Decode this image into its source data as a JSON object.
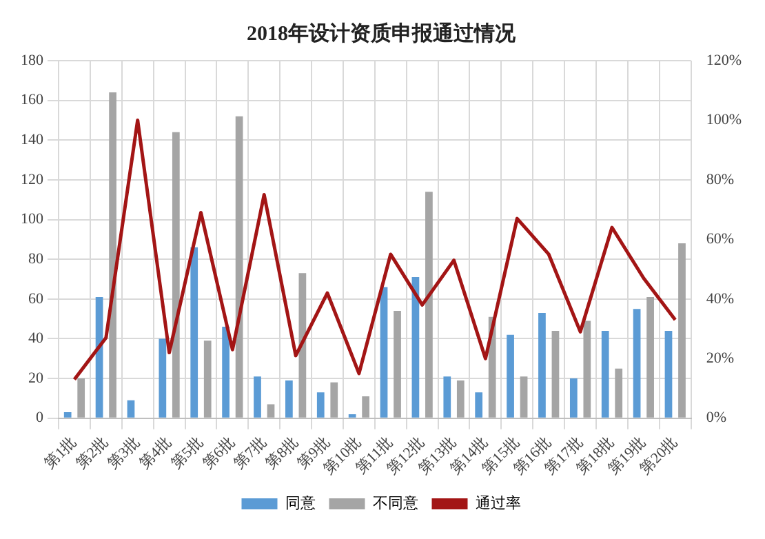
{
  "chart_data": {
    "type": "bar",
    "title": "2018年设计资质申报通过情况",
    "categories": [
      "第1批",
      "第2批",
      "第3批",
      "第4批",
      "第5批",
      "第6批",
      "第7批",
      "第8批",
      "第9批",
      "第10批",
      "第11批",
      "第12批",
      "第13批",
      "第14批",
      "第15批",
      "第16批",
      "第17批",
      "第18批",
      "第19批",
      "第20批"
    ],
    "series": [
      {
        "name": "同意",
        "color": "#5b9bd5",
        "values": [
          3,
          61,
          9,
          40,
          86,
          46,
          21,
          19,
          13,
          2,
          66,
          71,
          21,
          13,
          42,
          53,
          20,
          44,
          55,
          44
        ]
      },
      {
        "name": "不同意",
        "color": "#a5a5a5",
        "values": [
          20,
          164,
          0,
          144,
          39,
          152,
          7,
          73,
          18,
          11,
          54,
          114,
          19,
          51,
          21,
          44,
          49,
          25,
          61,
          88
        ]
      },
      {
        "name": "通过率",
        "type": "line",
        "axis": "y2",
        "color": "#a31515",
        "marker": "none",
        "values": [
          13,
          27,
          100,
          22,
          69,
          23,
          75,
          21,
          42,
          15,
          55,
          38,
          53,
          20,
          67,
          55,
          29,
          64,
          47,
          33
        ]
      }
    ],
    "ylim": [
      0,
      180
    ],
    "yticks": [
      0,
      20,
      40,
      60,
      80,
      100,
      120,
      140,
      160,
      180
    ],
    "y2lim": [
      0,
      120
    ],
    "y2ticks": [
      {
        "value": 0,
        "label": "0%"
      },
      {
        "value": 20,
        "label": "20%"
      },
      {
        "value": 40,
        "label": "40%"
      },
      {
        "value": 60,
        "label": "60%"
      },
      {
        "value": 80,
        "label": "80%"
      },
      {
        "value": 100,
        "label": "100%"
      },
      {
        "value": 120,
        "label": "120%"
      }
    ],
    "grid": true,
    "legend": "bottom"
  }
}
